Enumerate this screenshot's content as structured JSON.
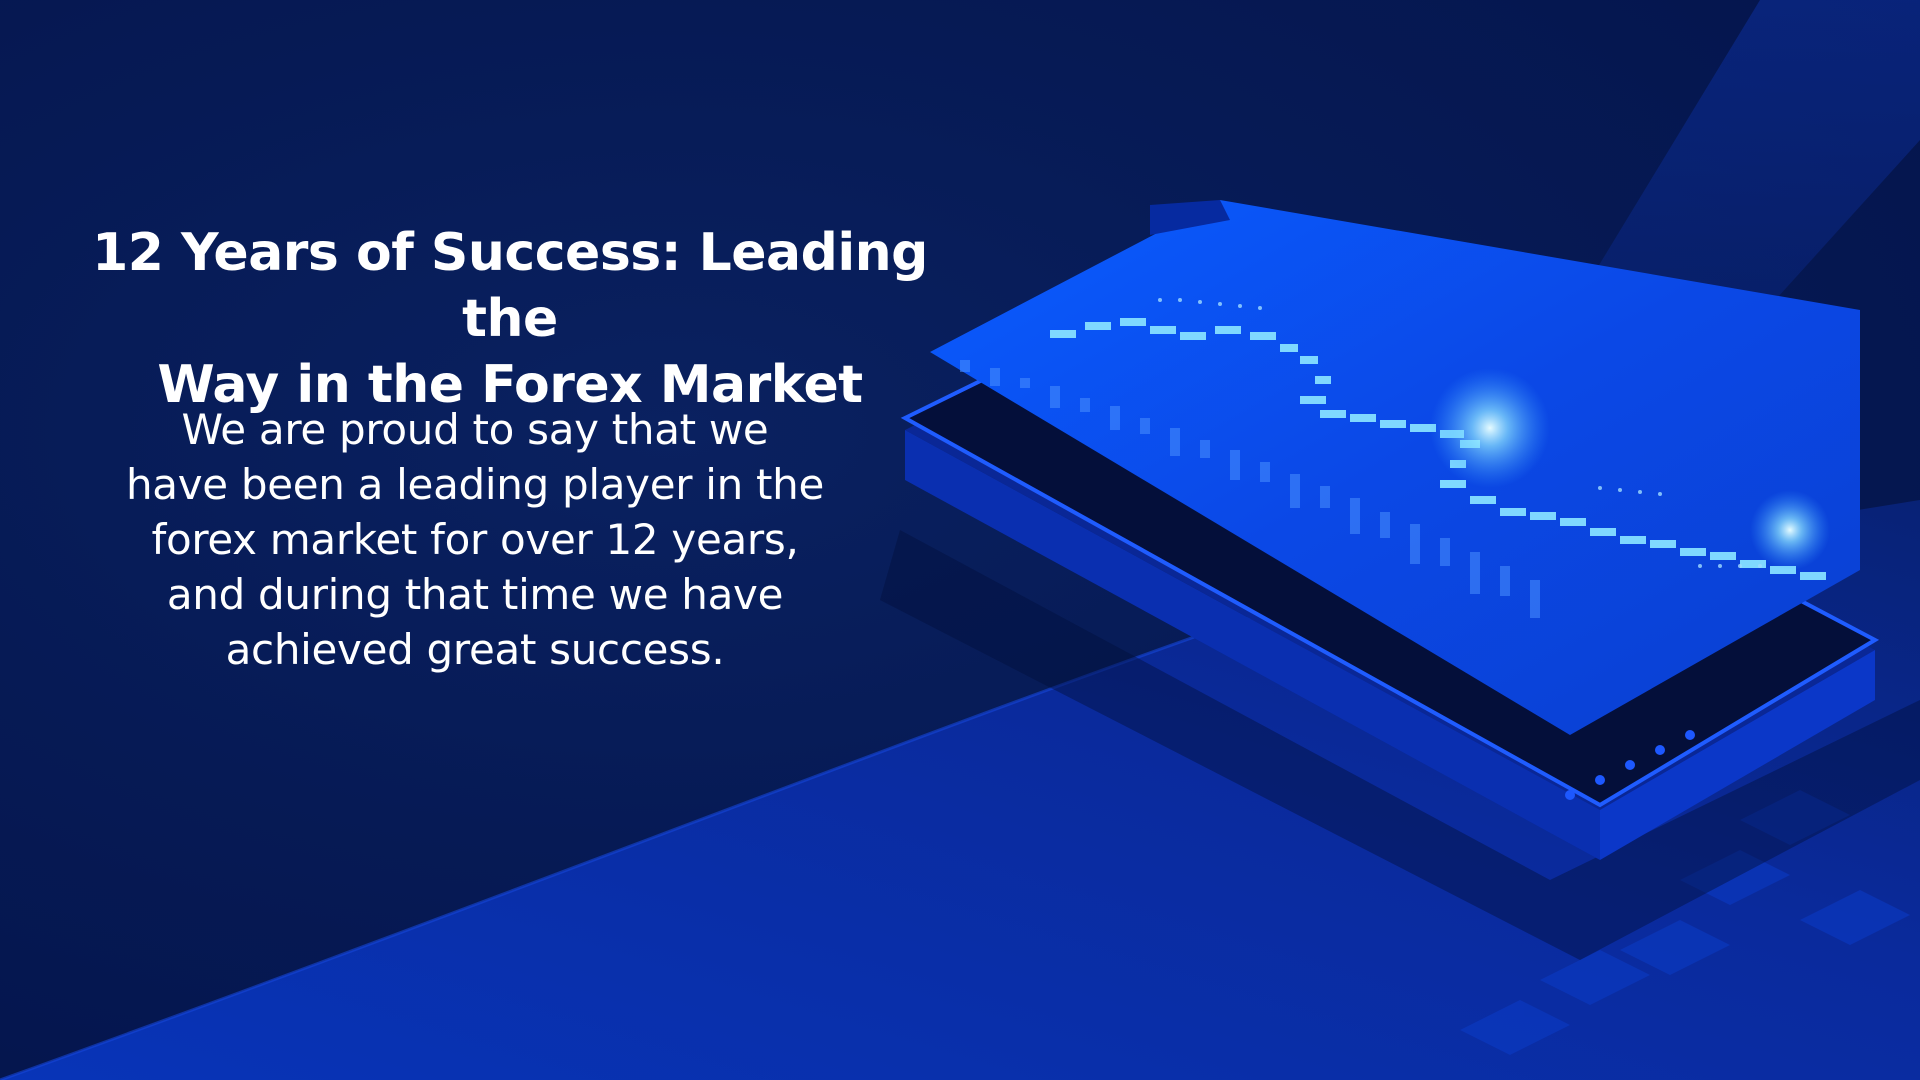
{
  "headline": {
    "lines": [
      "12 Years of Success: Leading the",
      "Way in the Forex Market"
    ]
  },
  "body": {
    "lines": [
      "We are proud to say that we",
      "have been a leading player in the",
      "forex market for over 12 years,",
      "and during that time we have",
      "achieved great success."
    ]
  },
  "illustration": {
    "subject": "isometric smartphone showing a glowing candlestick price chart",
    "colors": {
      "background_dark": "#04134a",
      "background_light": "#0c2f9e",
      "screen": "#0a57ff",
      "candle_glow": "#7fd8ff",
      "phone_body": "#0b2fb3"
    }
  }
}
